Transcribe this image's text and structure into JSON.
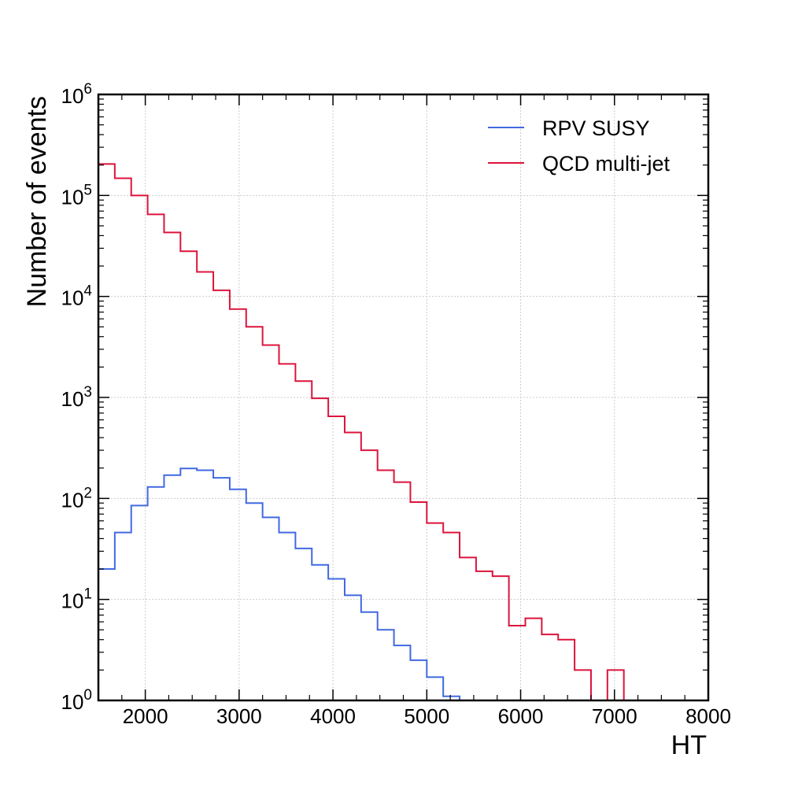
{
  "chart_data": {
    "type": "histogram-step",
    "x_title": "HT",
    "y_title": "Number of events",
    "y_scale": "log",
    "xlim": [
      1500,
      8000
    ],
    "ylim": [
      1,
      1000000
    ],
    "grid": true,
    "legend_position": "top-right",
    "x_ticks": [
      "2000",
      "3000",
      "4000",
      "5000",
      "6000",
      "7000",
      "8000"
    ],
    "y_ticks": [
      {
        "base": "10",
        "exp": "0"
      },
      {
        "base": "10",
        "exp": "1"
      },
      {
        "base": "10",
        "exp": "2"
      },
      {
        "base": "10",
        "exp": "3"
      },
      {
        "base": "10",
        "exp": "4"
      },
      {
        "base": "10",
        "exp": "5"
      },
      {
        "base": "10",
        "exp": "6"
      }
    ],
    "bin_edges": [
      1500,
      1675,
      1850,
      2025,
      2200,
      2375,
      2550,
      2725,
      2900,
      3075,
      3250,
      3425,
      3600,
      3775,
      3950,
      4125,
      4300,
      4475,
      4650,
      4825,
      5000,
      5175,
      5350,
      5525,
      5700,
      5875,
      6050,
      6225,
      6400,
      6575,
      6750,
      6925,
      7100,
      7275,
      7450,
      7625,
      7800
    ],
    "series": [
      {
        "name": "RPV SUSY",
        "color": "#4169e1",
        "values": [
          20,
          46,
          85,
          130,
          170,
          198,
          190,
          160,
          123,
          90,
          65,
          46,
          32,
          22,
          16,
          11,
          7.5,
          5,
          3.5,
          2.5,
          1.7,
          1.1,
          0,
          0,
          0,
          0,
          0,
          0,
          0,
          0,
          0,
          0,
          0,
          0,
          0,
          0
        ]
      },
      {
        "name": "QCD multi-jet",
        "color": "#dc143c",
        "values": [
          205000,
          148000,
          100000,
          65000,
          43000,
          28000,
          17500,
          11500,
          7500,
          5000,
          3300,
          2150,
          1450,
          980,
          650,
          450,
          300,
          190,
          145,
          92,
          57,
          46,
          26,
          19,
          17,
          5.5,
          6.5,
          4.5,
          4,
          2,
          0,
          2,
          0,
          0,
          0,
          0
        ]
      }
    ]
  }
}
